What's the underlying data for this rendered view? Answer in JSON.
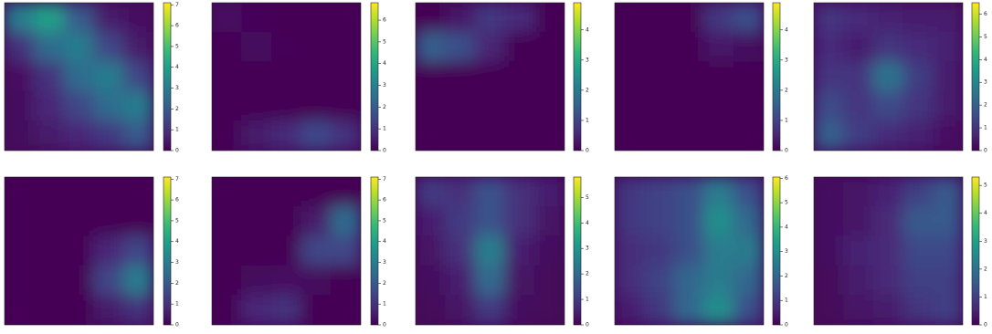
{
  "chart_data": [
    {
      "type": "heatmap",
      "colormap": "viridis",
      "clim": [
        0,
        7.1
      ],
      "cticks": [
        0,
        1,
        2,
        3,
        4,
        5,
        6,
        7
      ],
      "values": [
        [
          3,
          4,
          2,
          0.5,
          0.3
        ],
        [
          1,
          2.5,
          3,
          1.5,
          0.5
        ],
        [
          0.3,
          1,
          2.5,
          3,
          1.5
        ],
        [
          0.2,
          0.8,
          1.5,
          2.5,
          3
        ],
        [
          0.2,
          0.5,
          0.8,
          1.2,
          2
        ]
      ]
    },
    {
      "type": "heatmap",
      "colormap": "viridis",
      "clim": [
        0,
        6.8
      ],
      "cticks": [
        0,
        1,
        2,
        3,
        4,
        5,
        6
      ],
      "values": [
        [
          0.3,
          0.1,
          0,
          0,
          0
        ],
        [
          0,
          0.2,
          0.1,
          0,
          0
        ],
        [
          0,
          0,
          0,
          0,
          0
        ],
        [
          0,
          0,
          0,
          0,
          0
        ],
        [
          0,
          0.5,
          0.8,
          1.5,
          1
        ]
      ]
    },
    {
      "type": "heatmap",
      "colormap": "viridis",
      "clim": [
        0,
        4.9
      ],
      "cticks": [
        0,
        1,
        2,
        3,
        4
      ],
      "values": [
        [
          0,
          0.3,
          0.8,
          0.6,
          0
        ],
        [
          1.5,
          1.2,
          0.5,
          0,
          0
        ],
        [
          0,
          0,
          0,
          0,
          0
        ],
        [
          0,
          0,
          0,
          0,
          0
        ],
        [
          0,
          0,
          0,
          0,
          0
        ]
      ]
    },
    {
      "type": "heatmap",
      "colormap": "viridis",
      "clim": [
        0,
        4.9
      ],
      "cticks": [
        0,
        1,
        2,
        3,
        4
      ],
      "values": [
        [
          0,
          0,
          0,
          0.8,
          1.2
        ],
        [
          0,
          0,
          0,
          0.3,
          0.2
        ],
        [
          0,
          0,
          0,
          0,
          0
        ],
        [
          0,
          0,
          0,
          0,
          0
        ],
        [
          0,
          0,
          0,
          0,
          0
        ]
      ]
    },
    {
      "type": "heatmap",
      "colormap": "viridis",
      "clim": [
        0,
        6.5
      ],
      "cticks": [
        0,
        1,
        2,
        3,
        4,
        5,
        6
      ],
      "values": [
        [
          1,
          0.8,
          0.6,
          0.5,
          0.5
        ],
        [
          0.8,
          0.5,
          1,
          0.8,
          0.6
        ],
        [
          1,
          1,
          2.5,
          1.2,
          0.5
        ],
        [
          1.5,
          1,
          1.5,
          1,
          0.5
        ],
        [
          2,
          1.2,
          0.8,
          0.6,
          0.3
        ]
      ]
    },
    {
      "type": "heatmap",
      "colormap": "viridis",
      "clim": [
        0,
        7.1
      ],
      "cticks": [
        0,
        1,
        2,
        3,
        4,
        5,
        6,
        7
      ],
      "values": [
        [
          0,
          0,
          0,
          0,
          0
        ],
        [
          0,
          0,
          0,
          0,
          0
        ],
        [
          0,
          0,
          0,
          0.8,
          1.5
        ],
        [
          0,
          0,
          0,
          1.5,
          3
        ],
        [
          0,
          0,
          0,
          0.5,
          1
        ]
      ]
    },
    {
      "type": "heatmap",
      "colormap": "viridis",
      "clim": [
        0,
        7.1
      ],
      "cticks": [
        0,
        1,
        2,
        3,
        4,
        5,
        6,
        7
      ],
      "values": [
        [
          0,
          0,
          0,
          0,
          0
        ],
        [
          0,
          0,
          0,
          0.5,
          2.5
        ],
        [
          0,
          0,
          0,
          1.5,
          1.5
        ],
        [
          0,
          0.2,
          0.3,
          0.2,
          0
        ],
        [
          0,
          0.8,
          1,
          0,
          0
        ]
      ]
    },
    {
      "type": "heatmap",
      "colormap": "viridis",
      "clim": [
        0,
        5.8
      ],
      "cticks": [
        0,
        1,
        2,
        3,
        4,
        5
      ],
      "values": [
        [
          1,
          0.8,
          1.5,
          0.8,
          0.5
        ],
        [
          0.5,
          1,
          1.5,
          0.8,
          0.3
        ],
        [
          0.3,
          0.8,
          2.5,
          0.5,
          0.2
        ],
        [
          0.2,
          0.5,
          2,
          0.3,
          0.1
        ],
        [
          0.1,
          0.3,
          1,
          0.2,
          0.1
        ]
      ]
    },
    {
      "type": "heatmap",
      "colormap": "viridis",
      "clim": [
        0,
        6.05
      ],
      "cticks": [
        0,
        1,
        2,
        3,
        4,
        5,
        6
      ],
      "values": [
        [
          1,
          1.2,
          1.5,
          2.5,
          1.5
        ],
        [
          1,
          1.2,
          1.5,
          3,
          2
        ],
        [
          0.8,
          1,
          1.5,
          2.5,
          2.5
        ],
        [
          0.8,
          1.2,
          2,
          2.5,
          2
        ],
        [
          0.5,
          1,
          2,
          3,
          1.5
        ]
      ]
    },
    {
      "type": "heatmap",
      "colormap": "viridis",
      "clim": [
        0,
        5.3
      ],
      "cticks": [
        0,
        1,
        2,
        3,
        4,
        5
      ],
      "values": [
        [
          0.2,
          0.3,
          0.5,
          1,
          1.5
        ],
        [
          0.2,
          0.3,
          0.6,
          1.5,
          1.5
        ],
        [
          0.2,
          0.5,
          0.6,
          1.2,
          1.2
        ],
        [
          0.1,
          0.4,
          0.6,
          1,
          1
        ],
        [
          0.1,
          0.3,
          0.4,
          0.8,
          1
        ]
      ]
    }
  ]
}
